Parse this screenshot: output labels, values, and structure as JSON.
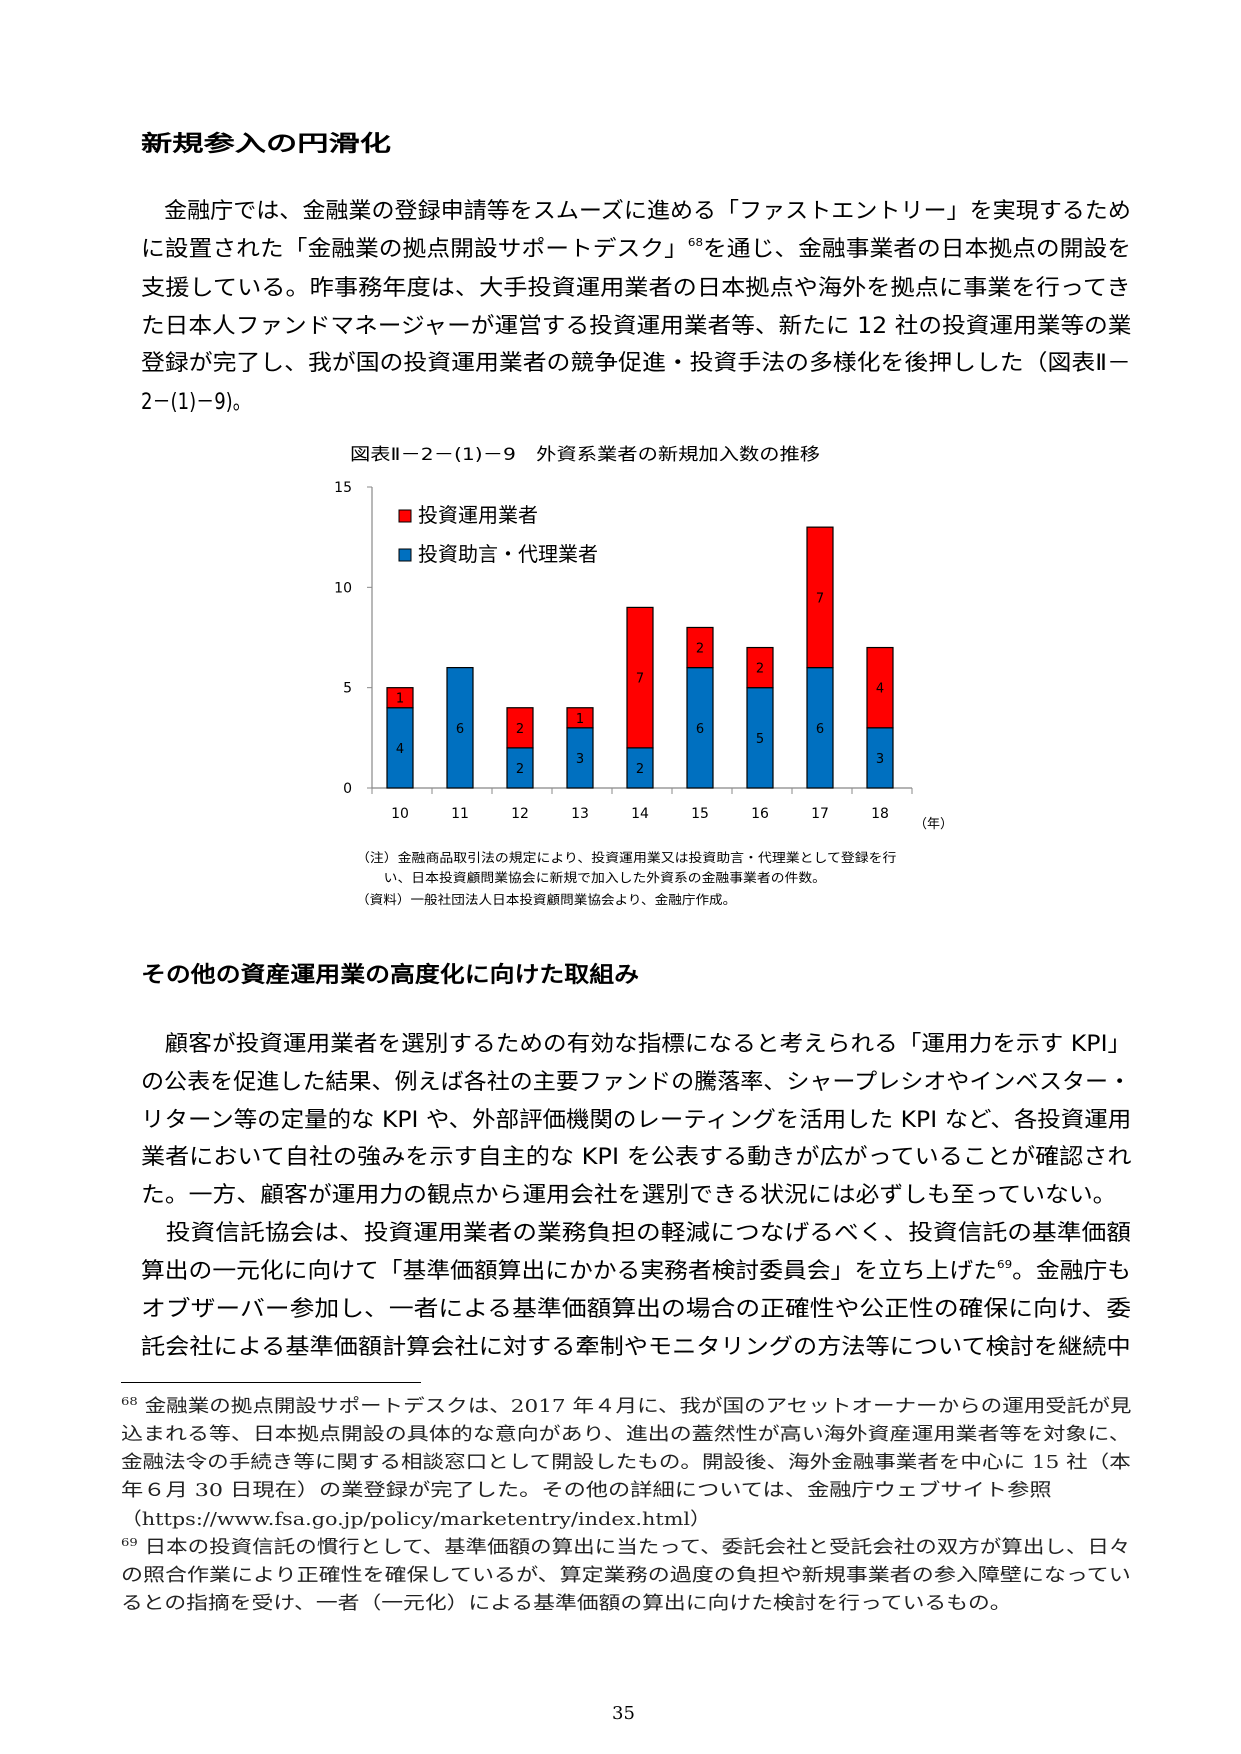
{
  "section1": {
    "heading": "新規参入の円滑化",
    "lines": [
      {
        "a": "　金融庁では、金融業の登録申請等をスムーズに進める「ファストエントリー」を実現するため"
      },
      {
        "a": "に設置された「金融業の拠点開設サポートデスク」",
        "sup": "68",
        "b": "を通じ、金融事業者の日本拠点の開設を"
      },
      {
        "a": "支援している。昨事務年度は、大手投資運用業者の日本拠点や海外を拠点に事業を行ってき"
      },
      {
        "a": "た日本人ファンドマネージャーが運営する投資運用業者等、新たに 12 社の投資運用業等の業"
      },
      {
        "a": "登録が完了し、我が国の投資運用業者の競争促進・投資手法の多様化を後押しした（図表Ⅱ－"
      },
      {
        "a": "2－(1)－9)。"
      }
    ]
  },
  "figure": {
    "caption": "図表Ⅱ－2－(1)－9　外資系業者の新規加入数の推移",
    "notes": [
      "（注）金融商品取引法の規定により、投資運用業又は投資助言・代理業として登録を行",
      "　　い、日本投資顧問業協会に新規で加入した外資系の金融事業者の件数。",
      "（資料）一般社団法人日本投資顧問業協会より、金融庁作成。"
    ]
  },
  "chart_data": {
    "type": "bar",
    "stacked": true,
    "categories": [
      "10",
      "11",
      "12",
      "13",
      "14",
      "15",
      "16",
      "17",
      "18"
    ],
    "xlabel": "（年）",
    "ylim": [
      0,
      15
    ],
    "yticks": [
      "0",
      "5",
      "10",
      "15"
    ],
    "grid": false,
    "legend_position": "top-left",
    "series": [
      {
        "name": "投資助言・代理業者",
        "color": "#0070C0",
        "values": [
          4,
          6,
          2,
          3,
          2,
          6,
          5,
          6,
          3
        ]
      },
      {
        "name": "投資運用業者",
        "color": "#FF0000",
        "values": [
          1,
          0,
          2,
          1,
          7,
          2,
          2,
          7,
          4
        ]
      }
    ]
  },
  "section2": {
    "heading": "その他の資産運用業の高度化に向けた取組み",
    "lines": [
      {
        "a": "　顧客が投資運用業者を選別するための有効な指標になると考えられる「運用力を示す KPI」"
      },
      {
        "a": "の公表を促進した結果、例えば各社の主要ファンドの騰落率、シャープレシオやインベスター・"
      },
      {
        "a": "リターン等の定量的な KPI や、外部評価機関のレーティングを活用した KPI など、各投資運用"
      },
      {
        "a": "業者において自社の強みを示す自主的な KPI を公表する動きが広がっていることが確認され"
      },
      {
        "a": "た。一方、顧客が運用力の観点から運用会社を選別できる状況には必ずしも至っていない。"
      },
      {
        "a": "　投資信託協会は、投資運用業者の業務負担の軽減につなげるべく、投資信託の基準価額"
      },
      {
        "a": "算出の一元化に向けて「基準価額算出にかかる実務者検討委員会」を立ち上げた",
        "sup": "69",
        "b": "。金融庁も"
      },
      {
        "a": "オブザーバー参加し、一者による基準価額算出の場合の正確性や公正性の確保に向け、委"
      },
      {
        "a": "託会社による基準価額計算会社に対する牽制やモニタリングの方法等について検討を継続中"
      }
    ]
  },
  "footnotes": [
    {
      "num": "68",
      "lines": [
        "金融業の拠点開設サポートデスクは、2017 年４月に、我が国のアセットオーナーからの運用受託が見",
        "込まれる等、日本拠点開設の具体的な意向があり、進出の蓋然性が高い海外資産運用業者等を対象に、",
        "金融法令の手続き等に関する相談窓口として開設したもの。開設後、海外金融事業者を中心に 15 社（本",
        "年６月 30 日現在）の業登録が完了した。その他の詳細については、金融庁ウェブサイト参照",
        "（https://www.fsa.go.jp/policy/marketentry/index.html）"
      ]
    },
    {
      "num": "69",
      "lines": [
        "日本の投資信託の慣行として、基準価額の算出に当たって、委託会社と受託会社の双方が算出し、日々",
        "の照合作業により正確性を確保しているが、算定業務の過度の負担や新規事業者の参入障壁になってい",
        "るとの指摘を受け、一者（一元化）による基準価額の算出に向けた検討を行っているもの。"
      ]
    }
  ],
  "page_number": "35"
}
